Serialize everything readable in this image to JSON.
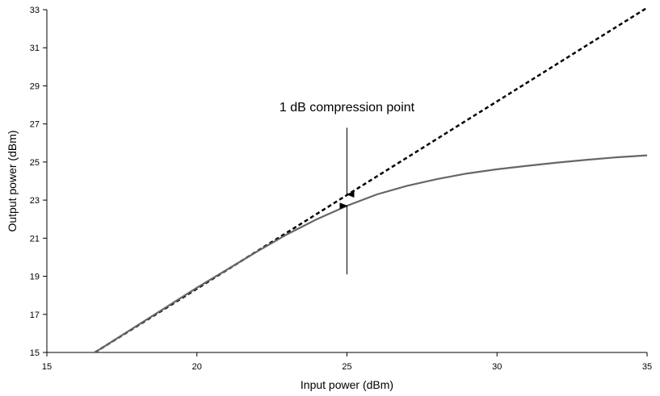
{
  "chart_data": {
    "type": "line",
    "xlabel": "Input power (dBm)",
    "ylabel": "Output power (dBm)",
    "xlim": [
      15,
      35
    ],
    "ylim": [
      15,
      33
    ],
    "x_ticks": [
      "15",
      "20",
      "25",
      "30",
      "35"
    ],
    "y_ticks": [
      "15",
      "17",
      "19",
      "21",
      "23",
      "25",
      "27",
      "29",
      "31",
      "33"
    ],
    "grid": false,
    "series": [
      {
        "style": "dashed",
        "color": "#000000",
        "x": [
          16.6,
          35
        ],
        "y": [
          15,
          33.1
        ]
      },
      {
        "style": "solid",
        "color": "#666666",
        "x": [
          16.6,
          18,
          20,
          22,
          23,
          24,
          25,
          26,
          27,
          28,
          29,
          30,
          31,
          32,
          33,
          34,
          35
        ],
        "y": [
          15,
          16.4,
          18.4,
          20.3,
          21.2,
          22.0,
          22.7,
          23.3,
          23.75,
          24.1,
          24.4,
          24.62,
          24.8,
          24.97,
          25.12,
          25.25,
          25.35
        ]
      }
    ],
    "annotations": {
      "label": "1 dB compression point",
      "x": 25,
      "arrow_down": {
        "from_y": 26.8,
        "to_y": 23.3
      },
      "arrow_up": {
        "from_y": 19.1,
        "to_y": 22.7
      }
    }
  }
}
